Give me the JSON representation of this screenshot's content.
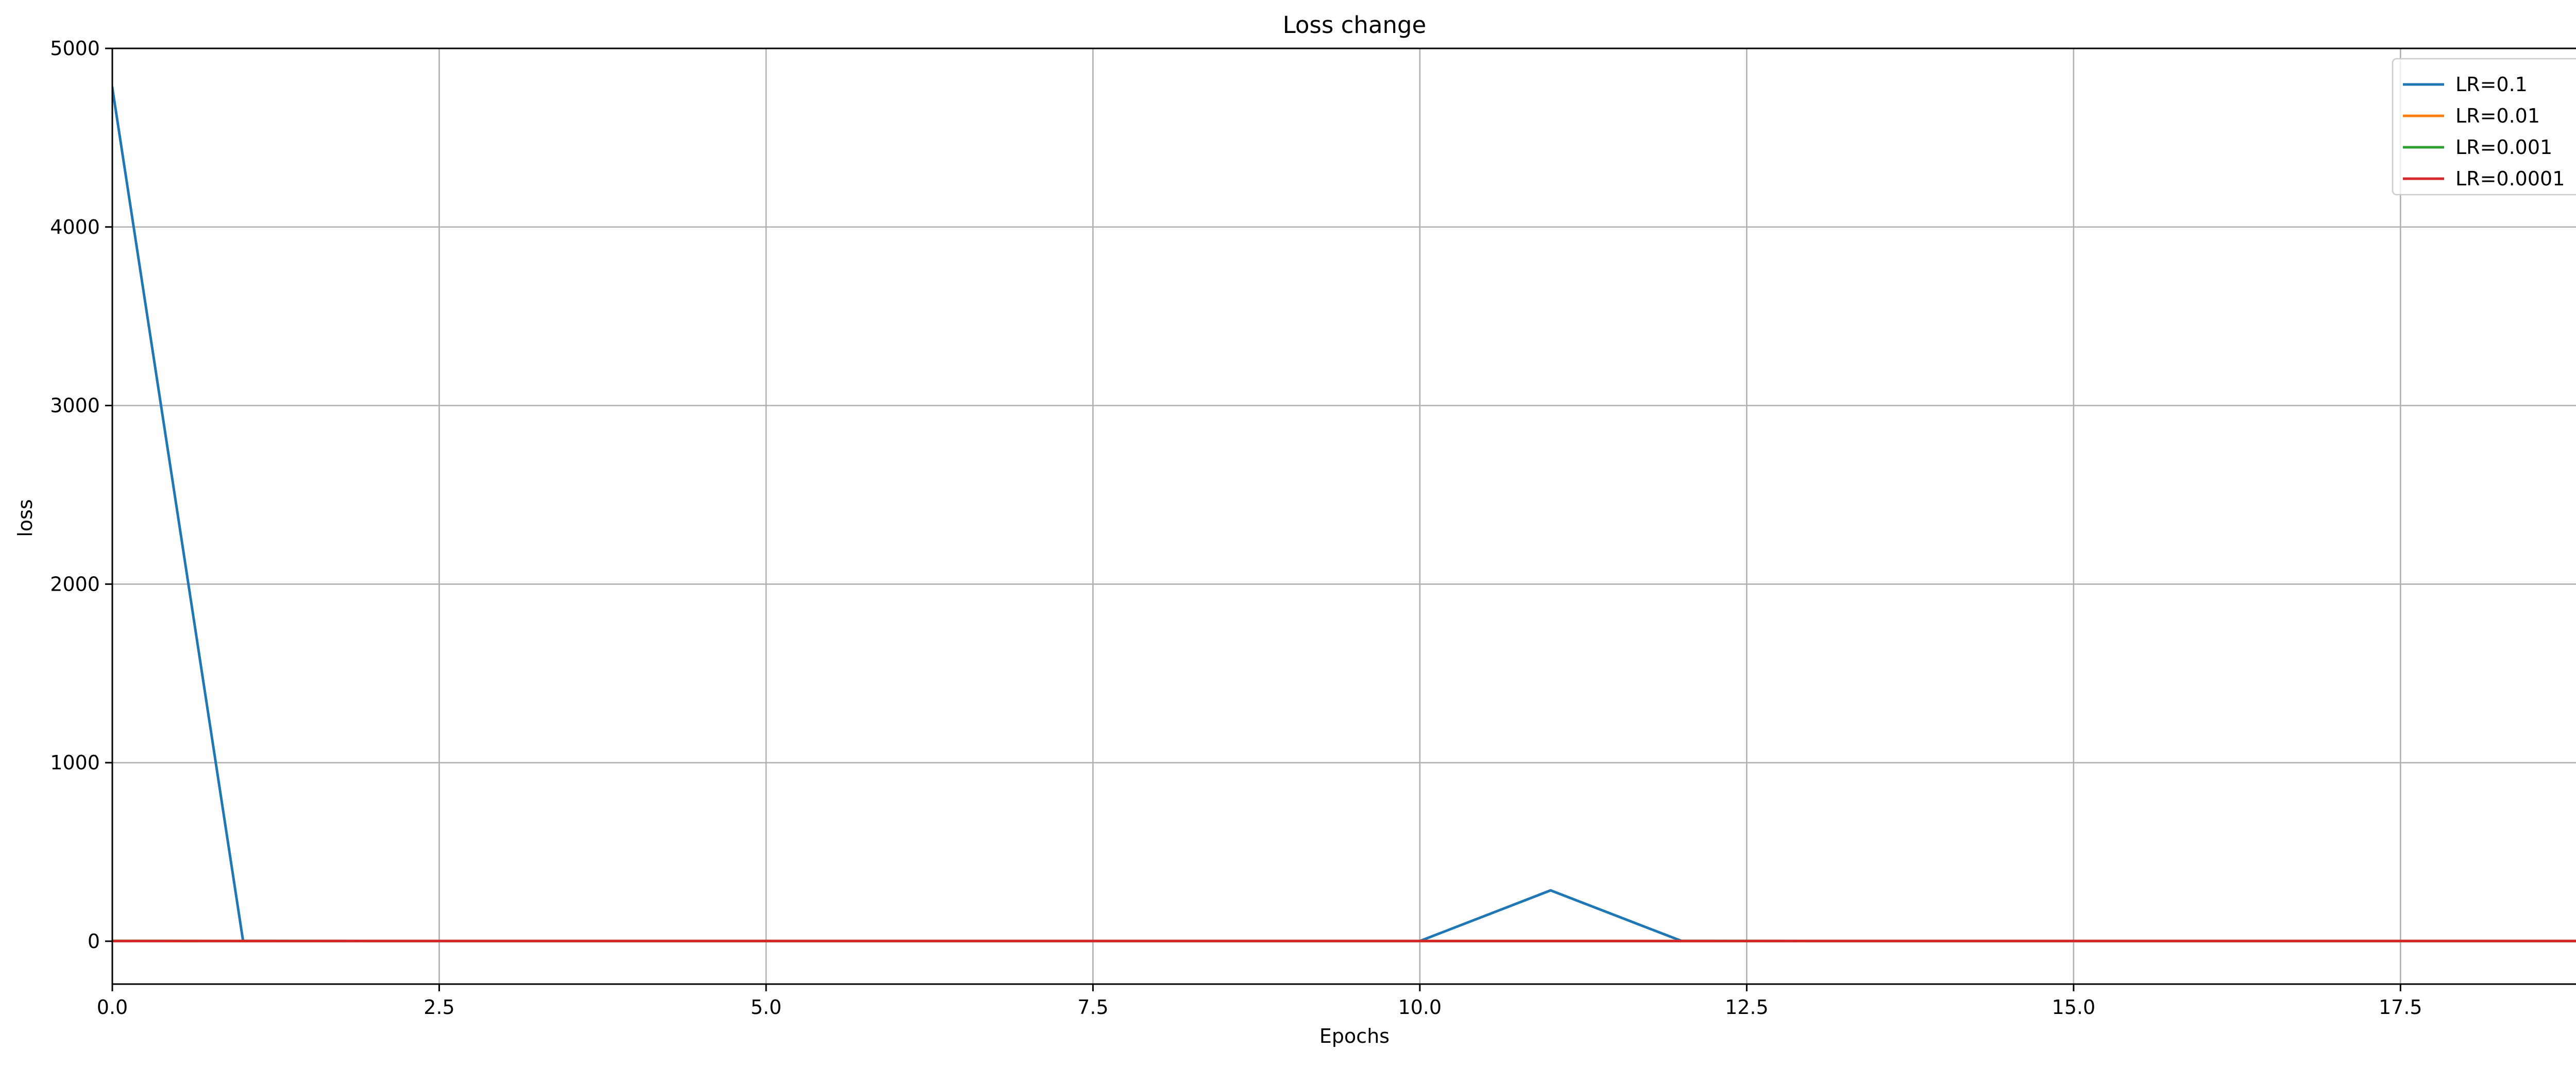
{
  "chart_data": {
    "type": "line",
    "title": "Loss change",
    "xlabel": "Epochs",
    "ylabel": "loss",
    "xlim": [
      0,
      19
    ],
    "ylim": [
      -240,
      5000
    ],
    "xticks": [
      0.0,
      2.5,
      5.0,
      7.5,
      10.0,
      12.5,
      15.0,
      17.5
    ],
    "xtick_labels": [
      "0.0",
      "2.5",
      "5.0",
      "7.5",
      "10.0",
      "12.5",
      "15.0",
      "17.5"
    ],
    "yticks": [
      0,
      1000,
      2000,
      3000,
      4000,
      5000
    ],
    "ytick_labels": [
      "0",
      "1000",
      "2000",
      "3000",
      "4000",
      "5000"
    ],
    "grid": true,
    "legend_position": "top-right",
    "x": [
      0,
      1,
      2,
      3,
      4,
      5,
      6,
      7,
      8,
      9,
      10,
      11,
      12,
      13,
      14,
      15,
      16,
      17,
      18,
      19
    ],
    "series": [
      {
        "name": "LR=0.1",
        "color": "#1f77b4",
        "values": [
          4780,
          2,
          1,
          1,
          1,
          1,
          1,
          1,
          1,
          1,
          1,
          285,
          2,
          1,
          1,
          1,
          1,
          1,
          1,
          1
        ]
      },
      {
        "name": "LR=0.01",
        "color": "#ff7f0e",
        "values": [
          2,
          1,
          1,
          1,
          1,
          1,
          1,
          1,
          1,
          1,
          1,
          1,
          1,
          1,
          1,
          1,
          1,
          1,
          1,
          1
        ]
      },
      {
        "name": "LR=0.001",
        "color": "#2ca02c",
        "values": [
          2,
          1,
          1,
          1,
          1,
          1,
          1,
          1,
          1,
          1,
          1,
          1,
          1,
          1,
          1,
          1,
          1,
          1,
          1,
          1
        ]
      },
      {
        "name": "LR=0.0001",
        "color": "#d62728",
        "values": [
          1,
          1,
          1,
          1,
          1,
          1,
          1,
          1,
          1,
          1,
          1,
          1,
          1,
          1,
          1,
          1,
          1,
          1,
          1,
          1
        ]
      }
    ]
  }
}
